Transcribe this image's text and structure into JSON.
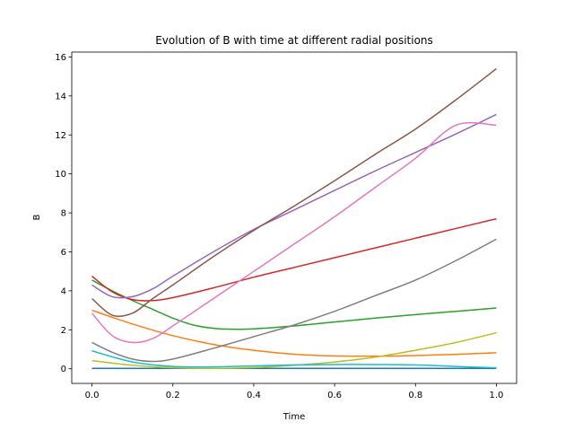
{
  "chart_data": {
    "type": "line",
    "title": "Evolution of B with time at different radial positions",
    "xlabel": "Time",
    "ylabel": "B",
    "xlim": [
      -0.05,
      1.05
    ],
    "ylim": [
      -0.75,
      16.25
    ],
    "xticks": [
      "0.0",
      "0.2",
      "0.4",
      "0.6",
      "0.8",
      "1.0"
    ],
    "yticks": [
      "0",
      "2",
      "4",
      "6",
      "8",
      "10",
      "12",
      "14",
      "16"
    ],
    "grid": false,
    "legend": "none",
    "series": [
      {
        "color": "#1f77b4",
        "x": [
          0,
          0.2,
          0.4,
          0.6,
          0.8,
          1.0
        ],
        "y": [
          0.02,
          0.02,
          0.02,
          0.02,
          0.02,
          0.02
        ]
      },
      {
        "color": "#ff7f0e",
        "x": [
          0,
          0.1,
          0.2,
          0.3,
          0.4,
          0.5,
          0.6,
          0.7,
          0.8,
          0.9,
          1.0
        ],
        "y": [
          3.0,
          2.3,
          1.7,
          1.25,
          0.95,
          0.75,
          0.66,
          0.65,
          0.68,
          0.74,
          0.82
        ]
      },
      {
        "color": "#2ca02c",
        "x": [
          0,
          0.05,
          0.1,
          0.15,
          0.2,
          0.25,
          0.3,
          0.35,
          0.4,
          0.5,
          0.6,
          0.7,
          0.8,
          0.9,
          1.0
        ],
        "y": [
          4.55,
          4.0,
          3.5,
          3.05,
          2.6,
          2.25,
          2.08,
          2.03,
          2.05,
          2.2,
          2.4,
          2.6,
          2.78,
          2.95,
          3.12
        ]
      },
      {
        "color": "#d62728",
        "x": [
          0,
          0.05,
          0.1,
          0.15,
          0.2,
          0.3,
          0.4,
          0.5,
          0.6,
          0.7,
          0.8,
          0.9,
          1.0
        ],
        "y": [
          4.75,
          3.95,
          3.55,
          3.5,
          3.65,
          4.15,
          4.7,
          5.2,
          5.7,
          6.2,
          6.7,
          7.2,
          7.7
        ]
      },
      {
        "color": "#9467bd",
        "x": [
          0,
          0.05,
          0.1,
          0.15,
          0.2,
          0.3,
          0.4,
          0.5,
          0.6,
          0.7,
          0.8,
          0.9,
          1.0
        ],
        "y": [
          4.3,
          3.7,
          3.7,
          4.1,
          4.75,
          6.0,
          7.15,
          8.15,
          9.15,
          10.15,
          11.1,
          12.05,
          13.05
        ]
      },
      {
        "color": "#8c564b",
        "x": [
          0,
          0.05,
          0.1,
          0.15,
          0.2,
          0.3,
          0.4,
          0.5,
          0.6,
          0.7,
          0.8,
          0.9,
          1.0
        ],
        "y": [
          3.6,
          2.75,
          2.85,
          3.6,
          4.3,
          5.75,
          7.1,
          8.35,
          9.65,
          11.0,
          12.3,
          13.8,
          15.4
        ]
      },
      {
        "color": "#e377c2",
        "x": [
          0,
          0.05,
          0.1,
          0.15,
          0.2,
          0.3,
          0.4,
          0.5,
          0.6,
          0.7,
          0.8,
          0.9,
          1.0
        ],
        "y": [
          2.85,
          1.7,
          1.35,
          1.55,
          2.2,
          3.6,
          5.0,
          6.4,
          7.8,
          9.3,
          10.8,
          12.5,
          12.5
        ]
      },
      {
        "color": "#7f7f7f",
        "x": [
          0,
          0.05,
          0.1,
          0.15,
          0.2,
          0.3,
          0.4,
          0.5,
          0.6,
          0.7,
          0.8,
          0.9,
          1.0
        ],
        "y": [
          1.35,
          0.85,
          0.5,
          0.38,
          0.5,
          1.05,
          1.65,
          2.25,
          2.95,
          3.75,
          4.55,
          5.55,
          6.65
        ]
      },
      {
        "color": "#bcbd22",
        "x": [
          0,
          0.1,
          0.2,
          0.3,
          0.4,
          0.5,
          0.6,
          0.7,
          0.8,
          0.9,
          1.0
        ],
        "y": [
          0.42,
          0.18,
          0.05,
          0.02,
          0.06,
          0.18,
          0.35,
          0.6,
          0.95,
          1.35,
          1.85
        ]
      },
      {
        "color": "#17becf",
        "x": [
          0,
          0.1,
          0.2,
          0.3,
          0.4,
          0.5,
          0.6,
          0.7,
          0.8,
          0.9,
          1.0
        ],
        "y": [
          0.92,
          0.35,
          0.12,
          0.1,
          0.15,
          0.2,
          0.22,
          0.22,
          0.2,
          0.12,
          0.05
        ]
      }
    ]
  }
}
